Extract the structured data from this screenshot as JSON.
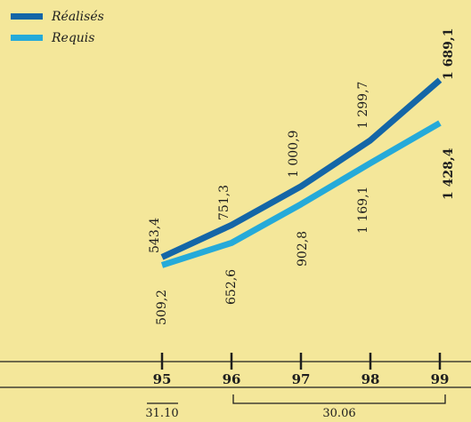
{
  "chart_data": {
    "type": "line",
    "title": "",
    "xlabel": "",
    "ylabel": "",
    "categories": [
      "95",
      "96",
      "97",
      "98",
      "99"
    ],
    "series": [
      {
        "name": "Réalisés",
        "color": "#1466a7",
        "values": [
          543.4,
          751.3,
          1000.9,
          1299.7,
          1689.1
        ],
        "labels": [
          "543,4",
          "751,3",
          "1 000,9",
          "1 299,7",
          "1 689,1"
        ]
      },
      {
        "name": "Requis",
        "color": "#25aad9",
        "values": [
          509.2,
          652.6,
          902.8,
          1169.1,
          1428.4
        ],
        "labels": [
          "509,2",
          "652,6",
          "902,8",
          "1 169,1",
          "1 428,4"
        ]
      }
    ],
    "date_labels": [
      "31.10",
      "30.06"
    ],
    "legend_position": "top-left",
    "grid": false
  }
}
